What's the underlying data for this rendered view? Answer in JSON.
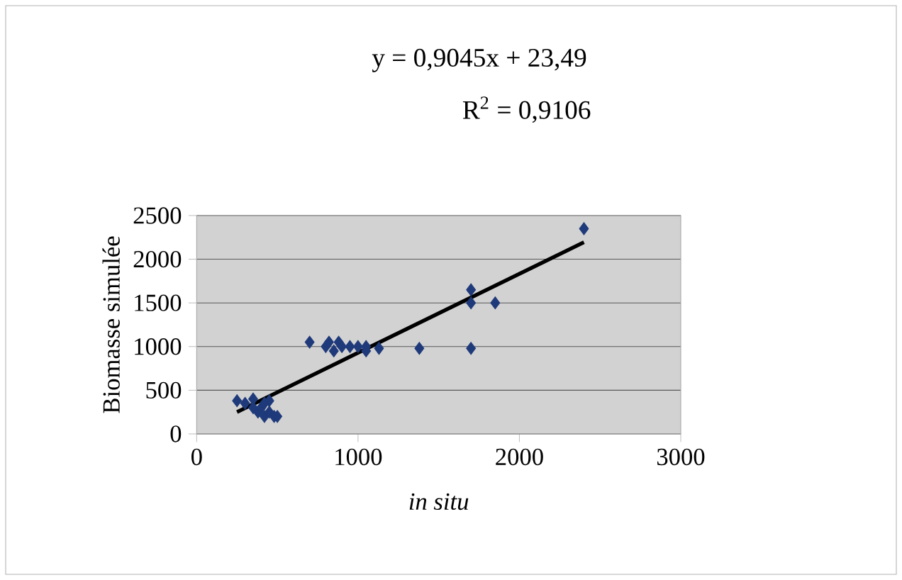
{
  "chart_data": {
    "type": "scatter",
    "xlabel": "*in situ*",
    "ylabel": "Biomasse simulée",
    "annotations": [
      "y = 0,9045x + 23,49",
      "R$^{2}$ = 0,9106"
    ],
    "xlim": [
      0,
      3000
    ],
    "xticks": [
      0,
      1000,
      2000,
      3000
    ],
    "ylim": [
      0,
      2500
    ],
    "yticks": [
      0,
      500,
      1000,
      1500,
      2000,
      2500
    ],
    "grid": "y",
    "marker": "diamond",
    "series": [
      {
        "color": "#1f3a7a",
        "x": [
          250,
          300,
          350,
          350,
          380,
          400,
          420,
          420,
          450,
          450,
          480,
          500,
          700,
          800,
          820,
          850,
          880,
          900,
          950,
          1000,
          1050,
          1050,
          1130,
          1380,
          1700,
          1700,
          1700,
          1850,
          2400
        ],
        "values": [
          380,
          350,
          400,
          300,
          250,
          300,
          200,
          350,
          380,
          250,
          200,
          200,
          1050,
          1000,
          1050,
          950,
          1050,
          1000,
          1000,
          1000,
          950,
          1000,
          980,
          980,
          980,
          1500,
          1650,
          1500,
          2350
        ]
      },
      {
        "type": "line",
        "color": "#000000",
        "marker": "none",
        "x": [
          250,
          2400
        ],
        "values": [
          250,
          2195
        ]
      }
    ]
  }
}
